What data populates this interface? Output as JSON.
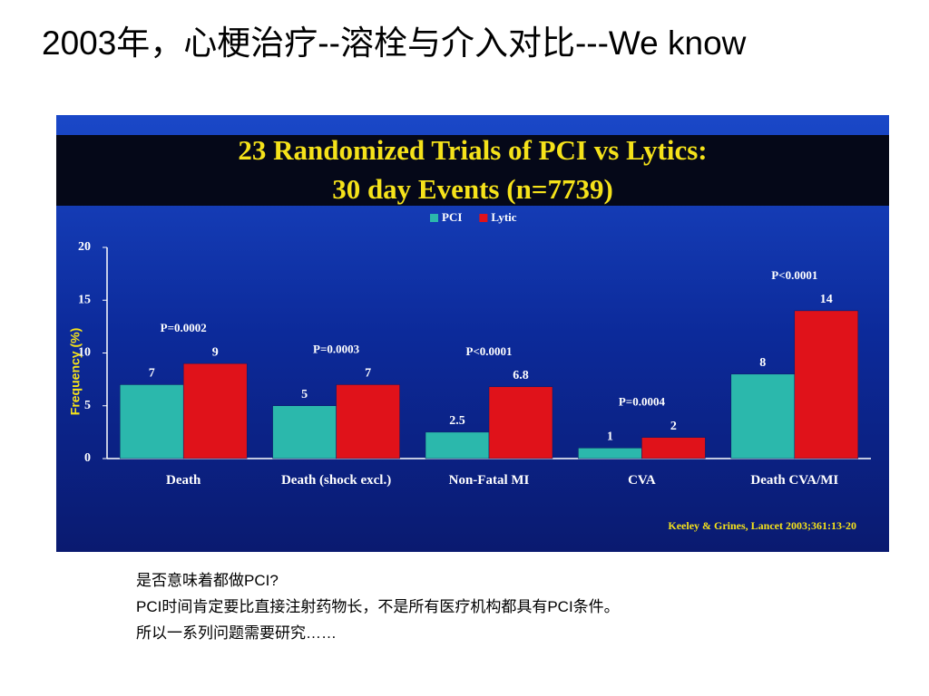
{
  "slide_title": "2003年，心梗治疗--溶栓与介入对比---We know",
  "notes": [
    "是否意味着都做PCI?",
    "PCI时间肯定要比直接注射药物长，不是所有医疗机构都具有PCI条件。",
    "所以一系列问题需要研究……"
  ],
  "chart_data": {
    "type": "bar",
    "title": "23 Randomized Trials of PCI vs Lytics:",
    "subtitle": "30 day Events (n=7739)",
    "y_label": "Frequency (%)",
    "categories": [
      "Death",
      "Death (shock excl.)",
      "Non-Fatal MI",
      "CVA",
      "Death CVA/MI"
    ],
    "series": [
      {
        "name": "PCI",
        "color": "#2bb8ac",
        "values": [
          7,
          5,
          2.5,
          1,
          8
        ]
      },
      {
        "name": "Lytic",
        "color": "#e0121a",
        "values": [
          9,
          7,
          6.8,
          2,
          14
        ]
      }
    ],
    "annotations": [
      "P=0.0002",
      "P=0.0003",
      "P<0.0001",
      "P=0.0004",
      "P<0.0001"
    ],
    "source": "Keeley & Grines, Lancet 2003;361:13-20",
    "ylim": [
      0,
      20
    ],
    "yticks": [
      0,
      5,
      10,
      15,
      20
    ],
    "grid": false
  }
}
